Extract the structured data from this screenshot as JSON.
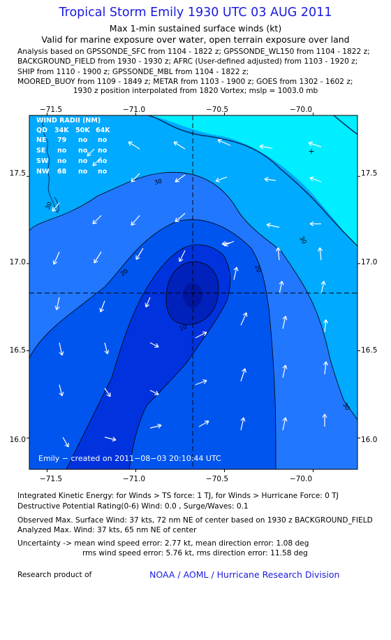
{
  "header": {
    "title": "Tropical Storm Emily 1930 UTC 03 AUG 2011",
    "subtitle1": "Max 1-min sustained surface winds (kt)",
    "subtitle2": "Valid for marine exposure over water, open terrain exposure over land"
  },
  "analysis_lines": [
    "Analysis based on GPSSONDE_SFC from 1104 - 1822 z; GPSSONDE_WL150 from 1104 - 1822 z;",
    "BACKGROUND_FIELD from 1930 - 1930 z; AFRC (User-defined adjusted) from 1103 - 1920 z;",
    "SHIP from 1110 - 1900 z; GPSSONDE_MBL from 1104 - 1822 z;",
    "MOORED_BUOY from 1109 - 1849 z; METAR from 1103 - 1900 z; GOES from 1302 - 1602 z;",
    "1930 z position interpolated from 1820 Vortex; mslp = 1003.0 mb"
  ],
  "map": {
    "lon_ticks": [
      "−71.5",
      "−71.0",
      "−70.5",
      "−70.0"
    ],
    "lat_ticks": [
      "17.5",
      "17.0",
      "16.5",
      "16.0"
    ],
    "lon_tick_values": [
      -71.5,
      -71.0,
      -70.5,
      -70.0
    ],
    "lat_tick_values": [
      17.5,
      17.0,
      16.5,
      16.0
    ],
    "lon_range": [
      -71.6,
      -69.75
    ],
    "lat_range": [
      15.82,
      17.85
    ],
    "center": {
      "lon": -70.63,
      "lat": 16.83
    },
    "contour_labels": [
      "30",
      "30",
      "30",
      "20",
      "20",
      "10",
      "30"
    ],
    "colors": {
      "cyan": "#00eeff",
      "light_blue": "#00aaff",
      "mid_blue": "#2277ff",
      "blue": "#0055ee",
      "dark_blue": "#0033dd",
      "deep_blue": "#0022bb",
      "vectors": "#ffffff",
      "coast": "#003366"
    },
    "wind_radii": {
      "header": "WIND RADII (NM)",
      "columns": [
        "QD",
        "34K",
        "50K",
        "64K"
      ],
      "rows": [
        {
          "q": "NE",
          "v34": "79",
          "v50": "no",
          "v64": "no"
        },
        {
          "q": "SE",
          "v34": "no",
          "v50": "no",
          "v64": "no"
        },
        {
          "q": "SW",
          "v34": "no",
          "v50": "no",
          "v64": "no"
        },
        {
          "q": "NW",
          "v34": "68",
          "v50": "no",
          "v64": "no"
        }
      ]
    },
    "credit": "Emily − created on 2011−08−03 20:10:44 UTC"
  },
  "footer": {
    "ike": "Integrated Kinetic Energy:  for Winds > TS force: 1 TJ,  for Winds > Hurricane Force: 0 TJ",
    "dpr": "Destructive Potential Rating(0-6)   Wind: 0.0 , Surge/Waves: 0.1",
    "observed": "Observed Max. Surface Wind: 37 kts, 72 nm NE of center based on 1930 z BACKGROUND_FIELD",
    "analyzed": "Analyzed Max. Wind: 37 kts, 65 nm NE of center",
    "uncertainty1": "Uncertainty -> mean wind speed error: 2.77 kt,   mean direction error: 1.08 deg",
    "uncertainty2": "rms wind speed error: 5.76 kt,   rms direction error: 11.58 deg",
    "research": "Research product of",
    "org": "NOAA / AOML / Hurricane Research Division"
  }
}
